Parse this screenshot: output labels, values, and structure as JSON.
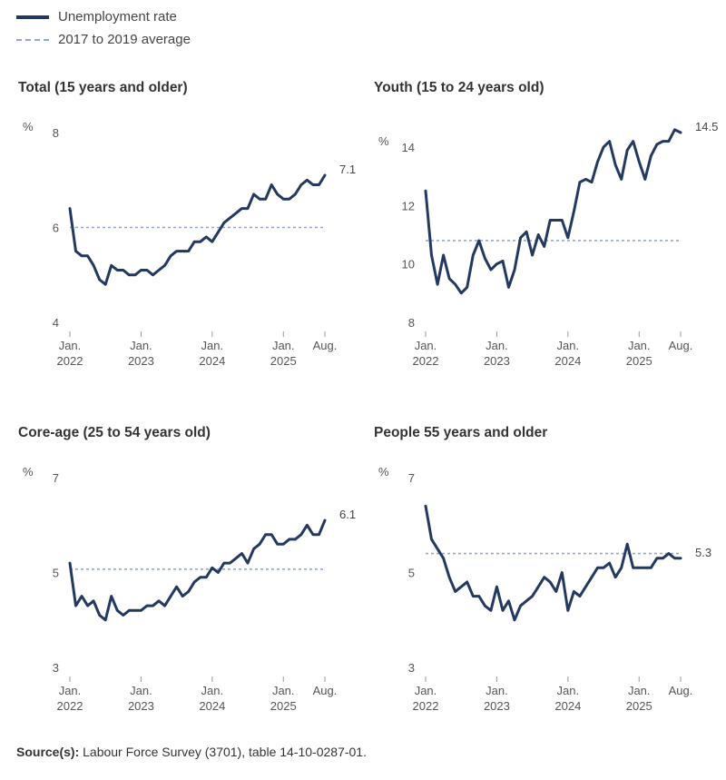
{
  "legend": {
    "line_label": "Unemployment rate",
    "avg_label": "2017 to 2019 average"
  },
  "colors": {
    "line": "#23395f",
    "average": "#8ea6e0",
    "axis": "#999999"
  },
  "source": {
    "prefix": "Source(s):",
    "text": " Labour Force Survey (3701), table 14-10-0287-01."
  },
  "chart_data": [
    {
      "type": "line",
      "title": "Total (15 years and older)",
      "ylabel": "%",
      "ylim": [
        4,
        8
      ],
      "yticks": [
        4,
        6,
        8
      ],
      "xticks": [
        {
          "index": 0,
          "line1": "Jan.",
          "line2": "2022"
        },
        {
          "index": 12,
          "line1": "Jan.",
          "line2": "2023"
        },
        {
          "index": 24,
          "line1": "Jan.",
          "line2": "2024"
        },
        {
          "index": 36,
          "line1": "Jan.",
          "line2": "2025"
        },
        {
          "index": 43,
          "line1": "Aug.",
          "line2": ""
        }
      ],
      "average": 6.0,
      "end_label": "7.1",
      "values": [
        6.4,
        5.5,
        5.4,
        5.4,
        5.2,
        4.9,
        4.8,
        5.2,
        5.1,
        5.1,
        5.0,
        5.0,
        5.1,
        5.1,
        5.0,
        5.1,
        5.2,
        5.4,
        5.5,
        5.5,
        5.5,
        5.7,
        5.7,
        5.8,
        5.7,
        5.9,
        6.1,
        6.2,
        6.3,
        6.4,
        6.4,
        6.7,
        6.6,
        6.6,
        6.9,
        6.7,
        6.6,
        6.6,
        6.7,
        6.9,
        7.0,
        6.9,
        6.9,
        7.1
      ]
    },
    {
      "type": "line",
      "title": "Youth (15 to 24 years old)",
      "ylabel": "%",
      "ylim": [
        8,
        14.5
      ],
      "yticks": [
        8,
        10,
        12,
        14
      ],
      "xticks": [
        {
          "index": 0,
          "line1": "Jan.",
          "line2": "2022"
        },
        {
          "index": 12,
          "line1": "Jan.",
          "line2": "2023"
        },
        {
          "index": 24,
          "line1": "Jan.",
          "line2": "2024"
        },
        {
          "index": 36,
          "line1": "Jan.",
          "line2": "2025"
        },
        {
          "index": 43,
          "line1": "Aug.",
          "line2": ""
        }
      ],
      "average": 10.8,
      "end_label": "14.5",
      "values": [
        12.5,
        10.3,
        9.3,
        10.3,
        9.5,
        9.3,
        9.0,
        9.2,
        10.3,
        10.8,
        10.2,
        9.8,
        10.0,
        10.1,
        9.2,
        9.8,
        10.9,
        11.1,
        10.3,
        11.0,
        10.6,
        11.5,
        11.5,
        11.5,
        10.9,
        11.8,
        12.8,
        12.9,
        12.8,
        13.5,
        14.0,
        14.2,
        13.4,
        12.9,
        13.9,
        14.2,
        13.5,
        12.9,
        13.7,
        14.1,
        14.2,
        14.2,
        14.6,
        14.5
      ]
    },
    {
      "type": "line",
      "title": "Core-age (25 to 54 years old)",
      "ylabel": "%",
      "ylim": [
        3,
        7
      ],
      "yticks": [
        3,
        5,
        7
      ],
      "xticks": [
        {
          "index": 0,
          "line1": "Jan.",
          "line2": "2022"
        },
        {
          "index": 12,
          "line1": "Jan.",
          "line2": "2023"
        },
        {
          "index": 24,
          "line1": "Jan.",
          "line2": "2024"
        },
        {
          "index": 36,
          "line1": "Jan.",
          "line2": "2025"
        },
        {
          "index": 43,
          "line1": "Aug.",
          "line2": ""
        }
      ],
      "average": 5.07,
      "end_label": "6.1",
      "values": [
        5.2,
        4.3,
        4.5,
        4.3,
        4.4,
        4.1,
        4.0,
        4.5,
        4.2,
        4.1,
        4.2,
        4.2,
        4.2,
        4.3,
        4.3,
        4.4,
        4.3,
        4.5,
        4.7,
        4.5,
        4.6,
        4.8,
        4.9,
        4.9,
        5.1,
        5.0,
        5.2,
        5.2,
        5.3,
        5.4,
        5.2,
        5.5,
        5.6,
        5.8,
        5.8,
        5.6,
        5.6,
        5.7,
        5.7,
        5.8,
        6.0,
        5.8,
        5.8,
        6.1
      ]
    },
    {
      "type": "line",
      "title": "People 55 years and older",
      "ylabel": "%",
      "ylim": [
        3,
        7
      ],
      "yticks": [
        3,
        5,
        7
      ],
      "xticks": [
        {
          "index": 0,
          "line1": "Jan.",
          "line2": "2022"
        },
        {
          "index": 12,
          "line1": "Jan.",
          "line2": "2023"
        },
        {
          "index": 24,
          "line1": "Jan.",
          "line2": "2024"
        },
        {
          "index": 36,
          "line1": "Jan.",
          "line2": "2025"
        },
        {
          "index": 43,
          "line1": "Aug.",
          "line2": ""
        }
      ],
      "average": 5.4,
      "end_label": "5.3",
      "values": [
        6.4,
        5.7,
        5.5,
        5.3,
        4.9,
        4.6,
        4.7,
        4.8,
        4.5,
        4.5,
        4.3,
        4.2,
        4.7,
        4.2,
        4.4,
        4.0,
        4.3,
        4.4,
        4.5,
        4.7,
        4.9,
        4.8,
        4.6,
        5.0,
        4.2,
        4.6,
        4.5,
        4.7,
        4.9,
        5.1,
        5.1,
        5.2,
        4.9,
        5.1,
        5.6,
        5.1,
        5.1,
        5.1,
        5.1,
        5.3,
        5.3,
        5.4,
        5.3,
        5.3
      ]
    }
  ]
}
